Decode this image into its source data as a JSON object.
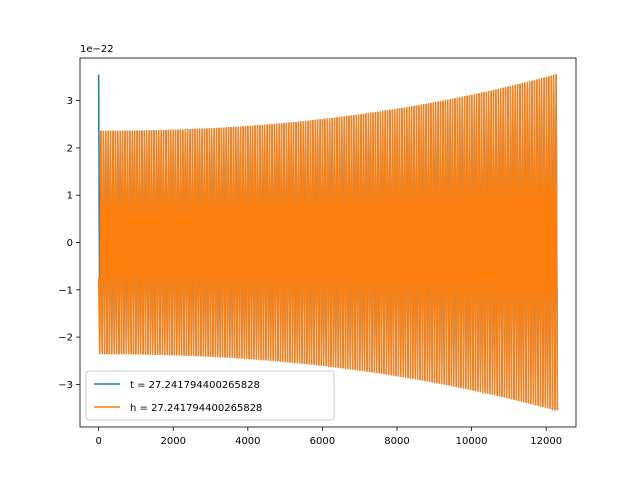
{
  "chart_data": {
    "type": "line",
    "title": "",
    "xlabel": "",
    "ylabel": "",
    "y_offset_text": "1e−22",
    "xlim": [
      -500,
      12800
    ],
    "ylim": [
      -3.9,
      3.9
    ],
    "xticks": [
      0,
      2000,
      4000,
      6000,
      8000,
      10000,
      12000
    ],
    "xtick_labels": [
      "0",
      "2000",
      "4000",
      "6000",
      "8000",
      "10000",
      "12000"
    ],
    "yticks": [
      -3,
      -2,
      -1,
      0,
      1,
      2,
      3
    ],
    "ytick_labels": [
      "−3",
      "−2",
      "−1",
      "0",
      "1",
      "2",
      "3"
    ],
    "grid": false,
    "legend_position": "lower-left",
    "series": [
      {
        "name": "t = 27.241794400265828",
        "color": "#1f77b4",
        "description_points": {
          "x_start": 0,
          "x_end": 12300,
          "initial_spike_peak": 3.55,
          "envelope_start": 2.35,
          "envelope_end": 3.55,
          "oscillation_cycles": 190
        }
      },
      {
        "name": "h = 27.241794400265828",
        "color": "#ff7f0e",
        "description_points": {
          "x_start": 0,
          "x_end": 12300,
          "initial_spike_peak": -0.75,
          "envelope_start": 2.35,
          "envelope_end": 3.55,
          "oscillation_cycles": 190
        }
      }
    ]
  }
}
